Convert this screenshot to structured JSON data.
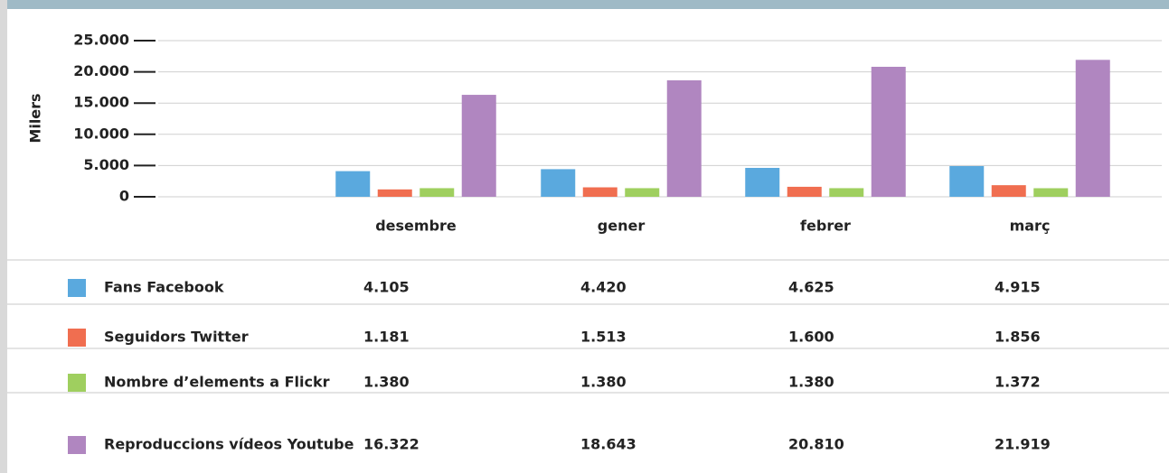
{
  "chart_data": {
    "type": "bar",
    "ylabel": "Milers",
    "categories": [
      "desembre",
      "gener",
      "febrer",
      "març"
    ],
    "series": [
      {
        "name": "Fans Facebook",
        "color": "#5aa9de",
        "values": [
          4105,
          4420,
          4625,
          4915
        ],
        "value_labels": [
          "4.105",
          "4.420",
          "4.625",
          "4.915"
        ]
      },
      {
        "name": "Seguidors Twitter",
        "color": "#f06e50",
        "values": [
          1181,
          1513,
          1600,
          1856
        ],
        "value_labels": [
          "1.181",
          "1.513",
          "1.600",
          "1.856"
        ]
      },
      {
        "name": "Nombre d’elements a Flickr",
        "color": "#9fcf5f",
        "values": [
          1380,
          1380,
          1380,
          1372
        ],
        "value_labels": [
          "1.380",
          "1.380",
          "1.380",
          "1.372"
        ]
      },
      {
        "name": "Reproduccions vídeos Youtube",
        "color": "#b086c0",
        "values": [
          16322,
          18643,
          20810,
          21919
        ],
        "value_labels": [
          "16.322",
          "18.643",
          "20.810",
          "21.919"
        ]
      }
    ],
    "ylim": [
      0,
      25000
    ],
    "yticks": [
      0,
      {
        "value": 5000,
        "label": "5.000"
      },
      {
        "value": 10000,
        "label": "10.000"
      },
      {
        "value": 15000,
        "label": "15.000"
      },
      {
        "value": 20000,
        "label": "20.000"
      },
      {
        "value": 25000,
        "label": "25.000"
      }
    ],
    "grid": true
  }
}
